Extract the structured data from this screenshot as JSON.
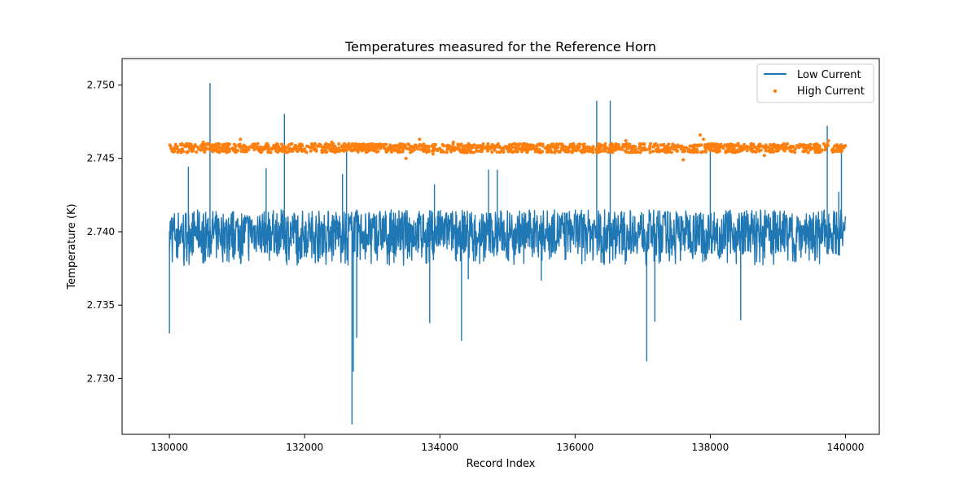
{
  "chart_data": {
    "type": "line",
    "title": "Temperatures measured for the Reference Horn",
    "xlabel": "Record Index",
    "ylabel": "Temperature (K)",
    "xlim": [
      129300,
      140500
    ],
    "ylim": [
      2.7262,
      2.7518
    ],
    "xticks": [
      130000,
      132000,
      134000,
      136000,
      138000,
      140000
    ],
    "yticks": [
      2.73,
      2.735,
      2.74,
      2.745,
      2.75
    ],
    "xtick_labels": [
      "130000",
      "132000",
      "134000",
      "136000",
      "138000",
      "140000"
    ],
    "ytick_labels": [
      "2.730",
      "2.735",
      "2.740",
      "2.745",
      "2.750"
    ],
    "grid": false,
    "legend_position": "top-right",
    "series": [
      {
        "name": "Low Current",
        "style": "line",
        "color": "#1f77b4",
        "x_start": 130000,
        "x_end": 140000,
        "baseline": 2.7403,
        "noise_range": [
          2.7385,
          2.7415
        ],
        "spikes": [
          {
            "x": 130000,
            "y": 2.7331
          },
          {
            "x": 130600,
            "y": 2.7501
          },
          {
            "x": 130280,
            "y": 2.7444
          },
          {
            "x": 131700,
            "y": 2.748
          },
          {
            "x": 131430,
            "y": 2.7443
          },
          {
            "x": 132620,
            "y": 2.7455
          },
          {
            "x": 132560,
            "y": 2.7439
          },
          {
            "x": 132700,
            "y": 2.7269
          },
          {
            "x": 132720,
            "y": 2.7305
          },
          {
            "x": 132770,
            "y": 2.7328
          },
          {
            "x": 133850,
            "y": 2.7338
          },
          {
            "x": 134320,
            "y": 2.7326
          },
          {
            "x": 134420,
            "y": 2.7368
          },
          {
            "x": 133920,
            "y": 2.7432
          },
          {
            "x": 134720,
            "y": 2.7442
          },
          {
            "x": 134850,
            "y": 2.7442
          },
          {
            "x": 135500,
            "y": 2.7367
          },
          {
            "x": 136320,
            "y": 2.7489
          },
          {
            "x": 136520,
            "y": 2.7489
          },
          {
            "x": 137060,
            "y": 2.7312
          },
          {
            "x": 137180,
            "y": 2.7339
          },
          {
            "x": 138000,
            "y": 2.7455
          },
          {
            "x": 138450,
            "y": 2.734
          },
          {
            "x": 139730,
            "y": 2.7472
          },
          {
            "x": 139900,
            "y": 2.7427
          },
          {
            "x": 139940,
            "y": 2.746
          }
        ]
      },
      {
        "name": "High Current",
        "style": "scatter",
        "color": "#ff7f0e",
        "x_start": 130000,
        "x_end": 140000,
        "baseline": 2.7457,
        "noise_range": [
          2.7454,
          2.746
        ],
        "outliers": [
          {
            "x": 130500,
            "y": 2.7461
          },
          {
            "x": 131050,
            "y": 2.7463
          },
          {
            "x": 131500,
            "y": 2.7454
          },
          {
            "x": 132400,
            "y": 2.7461
          },
          {
            "x": 133500,
            "y": 2.745
          },
          {
            "x": 133700,
            "y": 2.7463
          },
          {
            "x": 133900,
            "y": 2.7453
          },
          {
            "x": 134200,
            "y": 2.7461
          },
          {
            "x": 134500,
            "y": 2.7454
          },
          {
            "x": 135700,
            "y": 2.7454
          },
          {
            "x": 136750,
            "y": 2.7462
          },
          {
            "x": 137600,
            "y": 2.7449
          },
          {
            "x": 137850,
            "y": 2.7466
          },
          {
            "x": 137900,
            "y": 2.7463
          },
          {
            "x": 138800,
            "y": 2.7452
          },
          {
            "x": 139750,
            "y": 2.7462
          }
        ]
      }
    ]
  }
}
